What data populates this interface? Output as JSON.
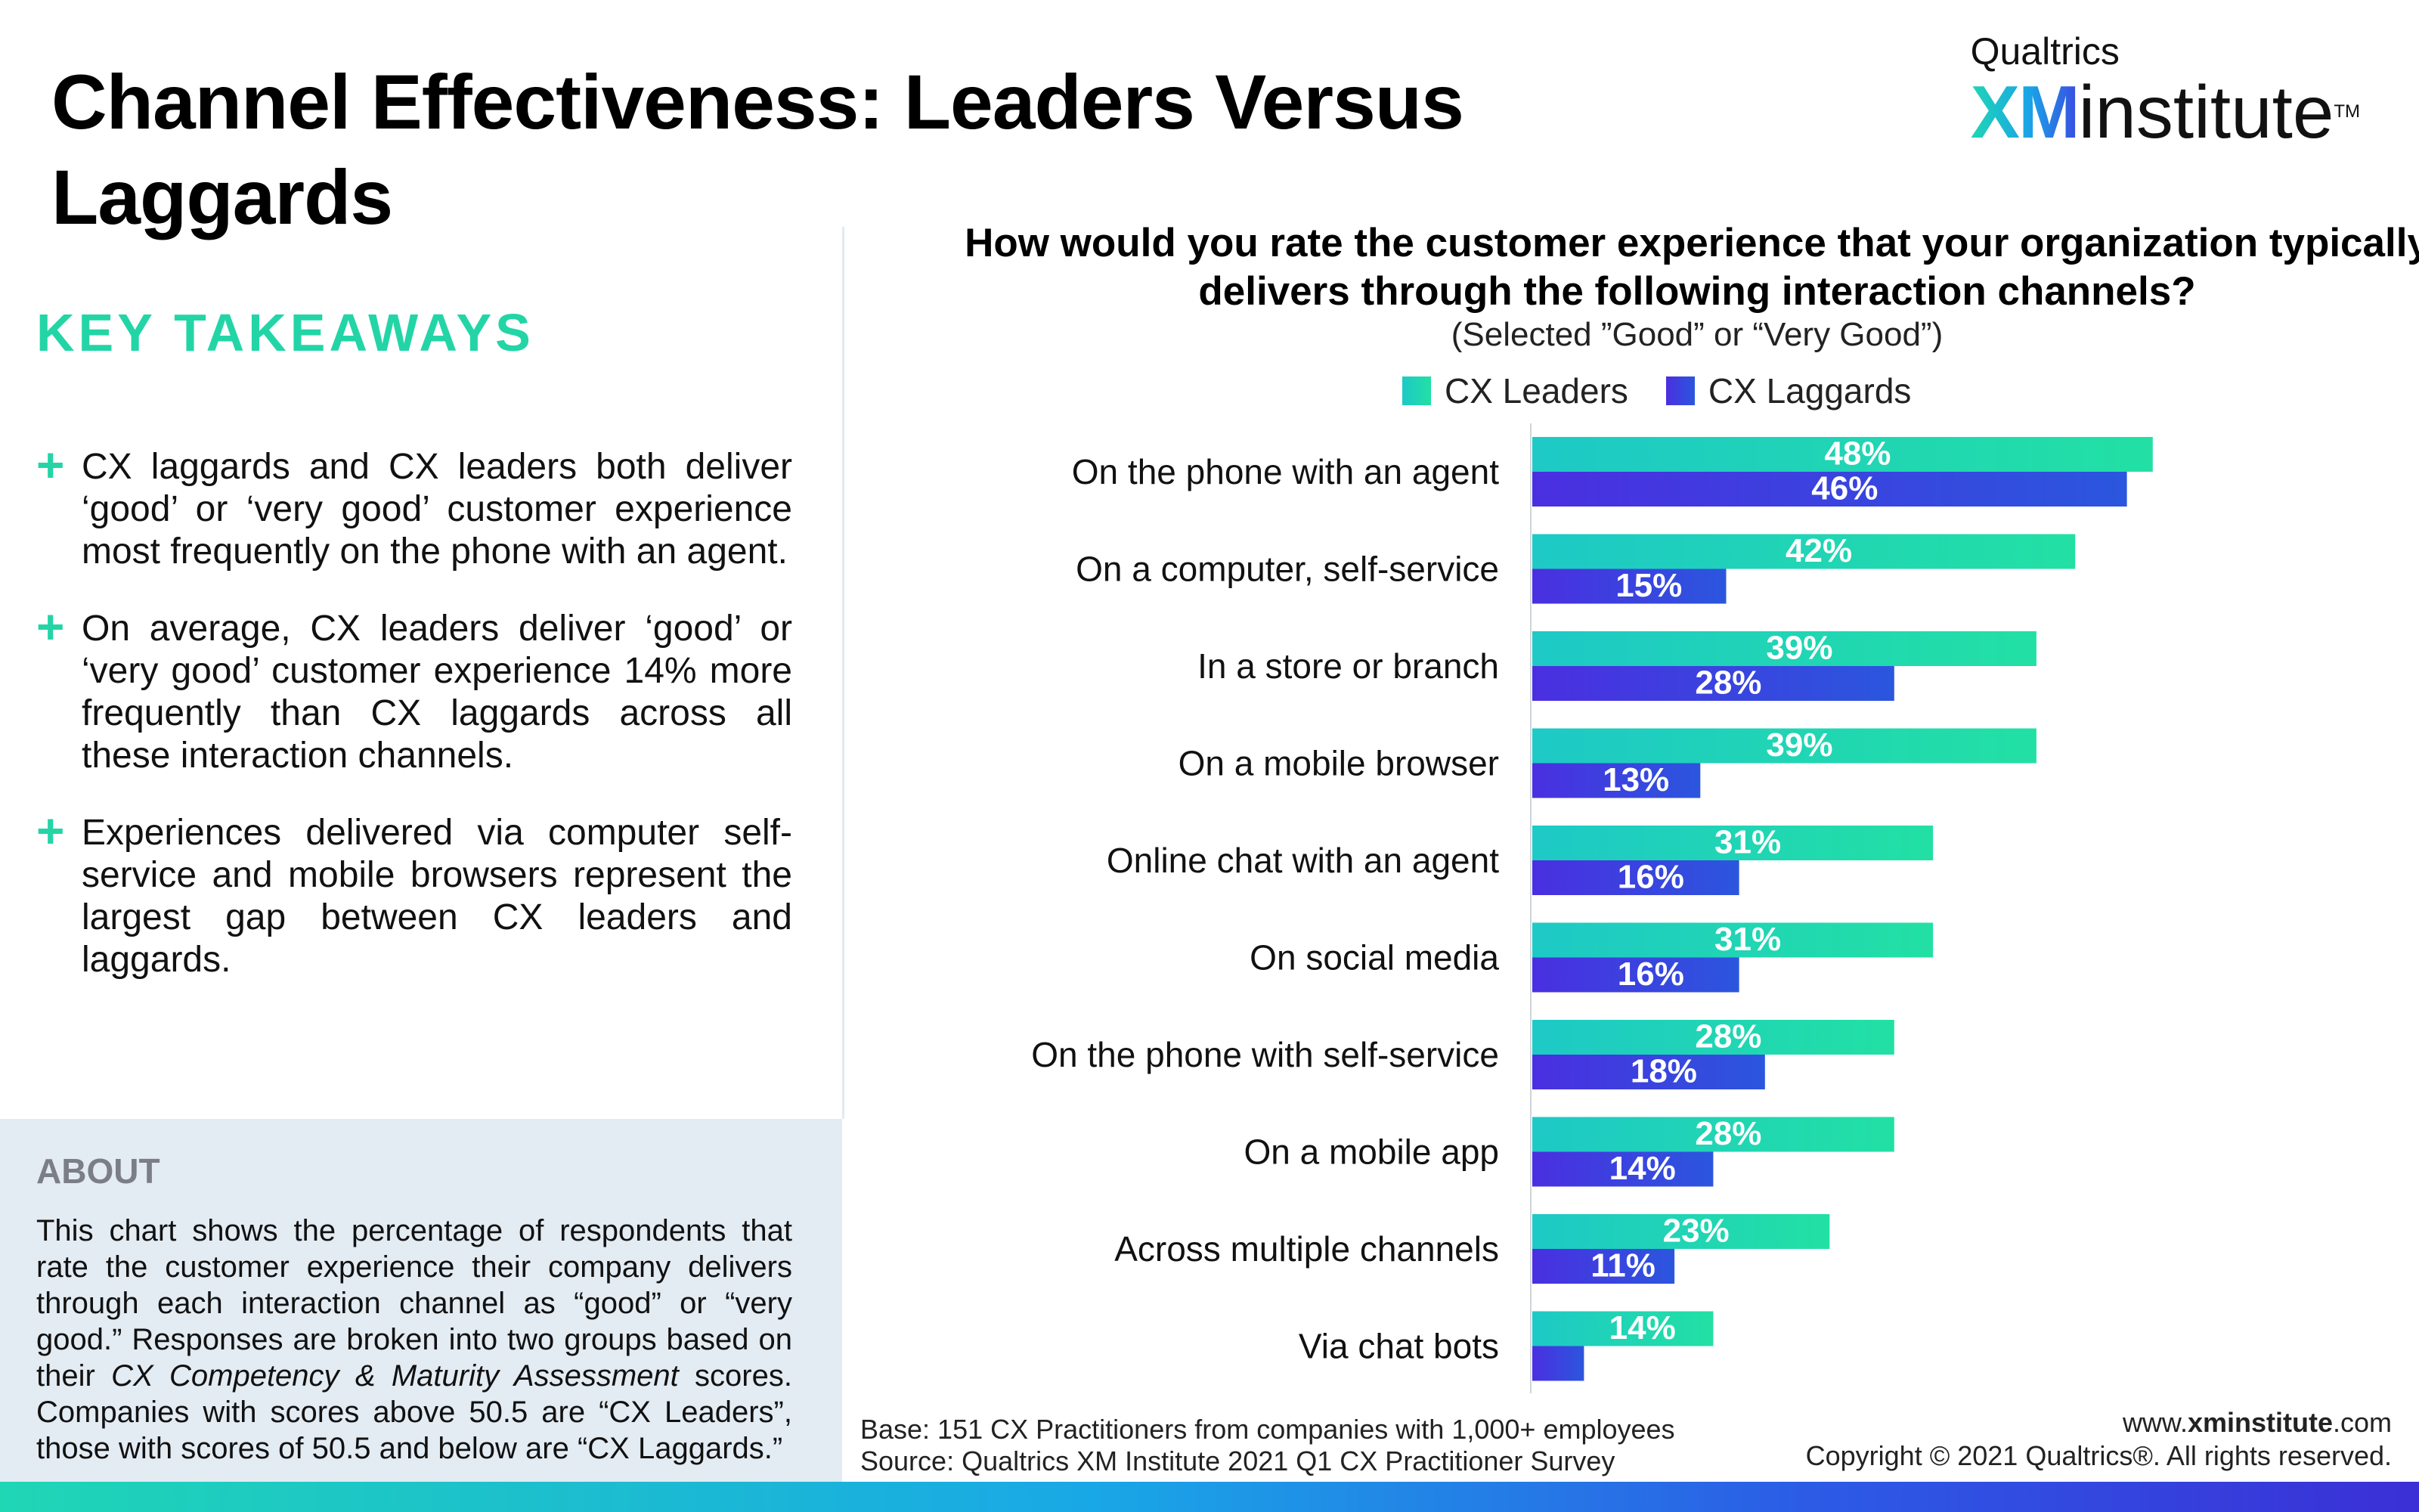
{
  "page": {
    "title": "Channel Effectiveness: Leaders Versus Laggards",
    "logo_top": "Qualtrics",
    "logo_xm": "XM",
    "logo_institute": "institute",
    "logo_tm": "TM"
  },
  "takeaways": {
    "heading": "KEY TAKEAWAYS",
    "items": [
      "CX laggards and CX leaders both deliver ‘good’ or ‘very good’ customer experience most frequently on the phone with an agent.",
      "On average, CX leaders deliver ‘good’ or ‘very good’ customer experience 14% more frequently than CX laggards across all these interaction channels.",
      "Experiences delivered via computer self-service and mobile browsers represent the largest gap between CX leaders and laggards."
    ]
  },
  "about": {
    "heading": "ABOUT",
    "text_1": "This chart shows the percentage of respondents that rate the customer experience their company delivers through each interaction channel as “good” or “very good.” Responses are broken into two groups based on their ",
    "text_italic": "CX Competency & Maturity Assessment",
    "text_2": " scores. Companies with scores above 50.5 are “CX Leaders”, those with scores of 50.5 and below are “CX Laggards.”"
  },
  "footer": {
    "base": "Base: 151 CX Practitioners from companies with 1,000+ employees",
    "source": "Source: Qualtrics XM Institute 2021 Q1 CX Practitioner Survey",
    "website_prefix": "www.",
    "website_bold": "xminstitute",
    "website_suffix": ".com",
    "copyright": "Copyright © 2021 Qualtrics®. All rights reserved."
  },
  "colors": {
    "leaders_start": "#1ec9c6",
    "leaders_end": "#22e0a4",
    "laggards_start": "#4a2fe0",
    "laggards_end": "#2b56de",
    "accent": "#23d5a6"
  },
  "chart_data": {
    "type": "bar",
    "orientation": "horizontal",
    "title": "How would you rate the customer experience that your organization typically delivers through the following interaction channels?",
    "subtitle": "(Selected ”Good” or “Very Good”)",
    "categories": [
      "On the phone with an agent",
      "On a computer, self-service",
      "In a store or branch",
      "On a mobile browser",
      "Online chat with an agent",
      "On social media",
      "On the phone with self-service",
      "On a mobile app",
      "Across multiple channels",
      "Via chat bots"
    ],
    "series": [
      {
        "name": "CX Leaders",
        "values": [
          48,
          42,
          39,
          39,
          31,
          31,
          28,
          28,
          23,
          14
        ],
        "labels": [
          "48%",
          "42%",
          "39%",
          "39%",
          "31%",
          "31%",
          "28%",
          "28%",
          "23%",
          "14%"
        ]
      },
      {
        "name": "CX Laggards",
        "values": [
          46,
          15,
          28,
          13,
          16,
          16,
          18,
          14,
          11,
          4
        ],
        "labels": [
          "46%",
          "15%",
          "28%",
          "13%",
          "16%",
          "16%",
          "18%",
          "14%",
          "11%",
          ""
        ]
      }
    ],
    "unit": "%",
    "xlim": [
      0,
      60
    ],
    "grid": false,
    "legend": "top"
  }
}
